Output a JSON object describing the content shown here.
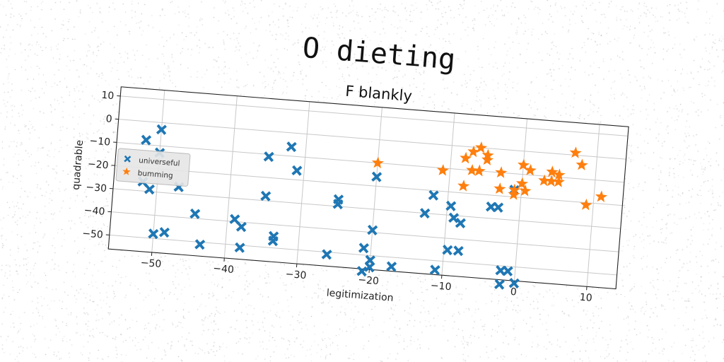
{
  "chart_data": {
    "type": "scatter",
    "title": "O dieting",
    "subtitle": "F blankly",
    "xlabel": "legitimization",
    "ylabel": "quadrable",
    "xlim": [
      -56,
      14
    ],
    "ylim": [
      -56,
      14
    ],
    "xticks": [
      -50,
      -40,
      -30,
      -20,
      -10,
      0,
      10
    ],
    "yticks": [
      10,
      0,
      -10,
      -20,
      -30,
      -40,
      -50
    ],
    "grid": true,
    "legend_position": "center-left",
    "series": [
      {
        "name": "universeful",
        "marker": "x",
        "color": "#1f77b4",
        "x": [
          -50,
          -52,
          -50,
          -52,
          -51,
          -47,
          -44.5,
          -43.5,
          -50,
          -48.5,
          -39,
          -38,
          -38,
          -33.5,
          -33.5,
          -35,
          -35,
          -32,
          -31,
          -25,
          -25,
          -26,
          -20,
          -20,
          -21,
          -20,
          -21,
          -20,
          -13,
          -12,
          -11,
          -17,
          -9.5,
          -9,
          -8,
          -8,
          -9.5,
          -3,
          -2,
          -1,
          -1,
          0,
          -2,
          -4
        ],
        "y": [
          -3,
          -8,
          -13,
          -26,
          -29,
          -27,
          -38,
          -51,
          -48,
          -47,
          -39,
          -42,
          -51,
          -45,
          -47,
          -11,
          -28,
          -6,
          -16,
          -27,
          -29,
          -51,
          -16,
          -39,
          -47,
          -52,
          -57,
          -55,
          -30,
          -22,
          -54,
          -54,
          -26,
          -31,
          -33,
          -45,
          -45,
          -25,
          -52,
          -52,
          -17,
          -57,
          -58,
          -25
        ]
      },
      {
        "name": "bumming",
        "marker": "*",
        "color": "#ff7f0e",
        "x": [
          -20,
          -11,
          -8,
          -7,
          -7,
          -6,
          -5,
          -6,
          -5,
          -6,
          -8,
          -3,
          -3,
          -1,
          -1,
          0,
          0,
          0.5,
          1,
          3,
          4,
          4,
          5,
          5,
          7,
          8,
          9,
          11
        ],
        "y": [
          -10,
          -11,
          -5,
          -2,
          -10,
          -10,
          -3,
          0,
          -5,
          -10,
          -17,
          -10,
          -17,
          -17,
          -19,
          -6,
          -14,
          -17,
          -8,
          -12,
          -8,
          -12,
          -12,
          -9,
          1,
          -4,
          -21,
          -17
        ]
      }
    ]
  }
}
